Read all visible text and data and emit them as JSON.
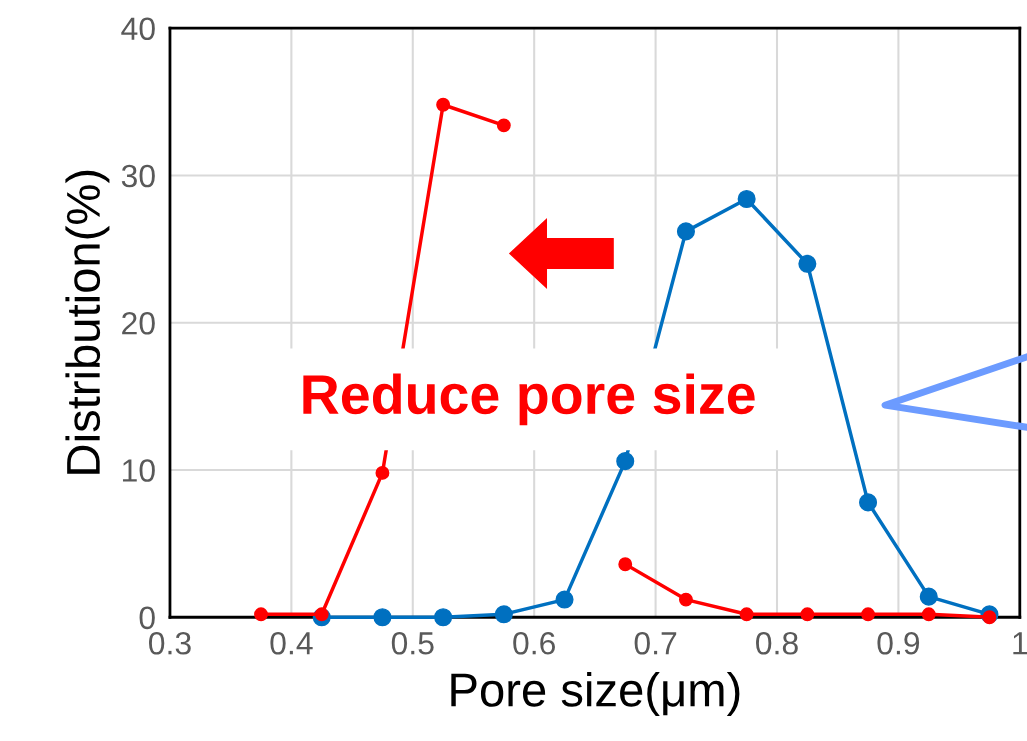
{
  "chart_data": {
    "type": "line",
    "xlabel": "Pore size(μm)",
    "ylabel": "Distribution(%)",
    "xlim": [
      0.3,
      1.0
    ],
    "xticks": [
      0.3,
      0.4,
      0.5,
      0.6,
      0.7,
      0.8,
      0.9,
      {
        "value": 1.0,
        "label": "1"
      }
    ],
    "ylim": [
      0,
      40
    ],
    "yticks": [
      0,
      10,
      20,
      30,
      40
    ],
    "grid": true,
    "marker": "circle",
    "line_style": "solid",
    "series": [
      {
        "color": "#0070c0",
        "x": [
          0.425,
          0.475,
          0.525,
          0.575,
          0.625,
          0.675,
          0.725,
          0.775,
          0.825,
          0.875,
          0.925,
          0.975
        ],
        "values": [
          0,
          0,
          0,
          0.2,
          1.2,
          10.6,
          26.2,
          28.4,
          24.0,
          7.8,
          1.4,
          0.2
        ]
      },
      {
        "color": "#ff0000",
        "x": [
          0.375,
          0.425,
          0.475,
          0.525,
          0.575,
          0.625,
          0.675,
          0.725,
          0.775,
          0.825,
          0.875,
          0.925,
          0.975
        ],
        "values": [
          0.2,
          0.2,
          9.8,
          34.8,
          33.4,
          null,
          3.6,
          1.2,
          0.2,
          0.2,
          0.2,
          0.2,
          0.0
        ]
      }
    ],
    "annotations": [
      "Reduce pore size"
    ]
  }
}
